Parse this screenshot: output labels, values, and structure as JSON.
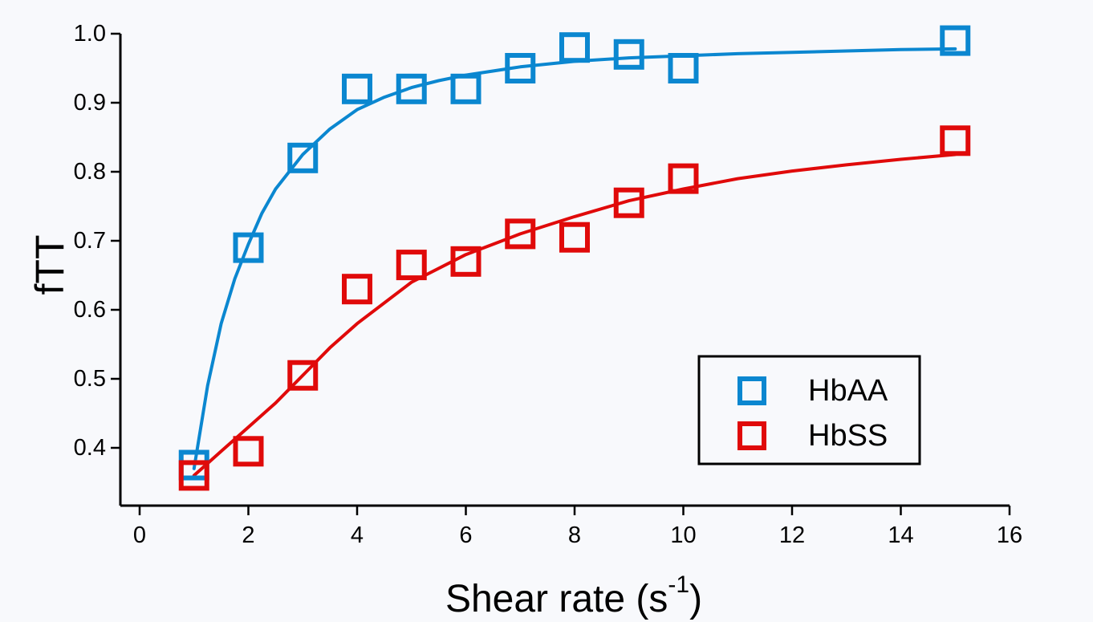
{
  "chart_data": {
    "type": "scatter",
    "title": "",
    "xlabel": "Shear rate (s",
    "xlabel_superscript": "-1",
    "xlabel_suffix": ")",
    "ylabel": "fTT",
    "xlim": [
      -0.5,
      16
    ],
    "ylim": [
      0.335,
      1.02
    ],
    "x_ticks": [
      0,
      2,
      4,
      6,
      8,
      10,
      12,
      14,
      16
    ],
    "y_ticks": [
      0.4,
      0.5,
      0.6,
      0.7,
      0.8,
      0.9,
      1.0
    ],
    "y_tick_labels": [
      "0.4",
      "0.5",
      "0.6",
      "0.7",
      "0.8",
      "0.9",
      "1.0"
    ],
    "grid": false,
    "legend_position": "bottom-right",
    "series": [
      {
        "name": "HbAA",
        "color": "#0b87d0",
        "marker": "open-square",
        "x": [
          1,
          2,
          3,
          4,
          5,
          6,
          7,
          8,
          9,
          10,
          15
        ],
        "y": [
          0.375,
          0.69,
          0.82,
          0.92,
          0.92,
          0.92,
          0.95,
          0.98,
          0.97,
          0.95,
          0.99
        ],
        "fit_x": [
          1.0,
          1.25,
          1.5,
          1.75,
          2.0,
          2.25,
          2.5,
          2.75,
          3.0,
          3.5,
          4.0,
          4.5,
          5.0,
          5.5,
          6.0,
          7.0,
          8.0,
          9.0,
          10.0,
          11.0,
          12.0,
          13.0,
          14.0,
          15.0
        ],
        "fit_y": [
          0.37,
          0.49,
          0.58,
          0.645,
          0.695,
          0.74,
          0.775,
          0.8,
          0.825,
          0.862,
          0.89,
          0.908,
          0.922,
          0.932,
          0.94,
          0.952,
          0.96,
          0.965,
          0.968,
          0.971,
          0.973,
          0.975,
          0.977,
          0.978
        ]
      },
      {
        "name": "HbSS",
        "color": "#e00a0a",
        "marker": "open-square",
        "x": [
          1,
          2,
          3,
          4,
          5,
          6,
          7,
          8,
          9,
          10,
          15
        ],
        "y": [
          0.36,
          0.395,
          0.505,
          0.63,
          0.665,
          0.67,
          0.71,
          0.705,
          0.755,
          0.79,
          0.845
        ],
        "fit_x": [
          1.0,
          1.5,
          2.0,
          2.5,
          3.0,
          3.5,
          4.0,
          5.0,
          6.0,
          7.0,
          8.0,
          9.0,
          10.0,
          11.0,
          12.0,
          13.0,
          14.0,
          15.0
        ],
        "fit_y": [
          0.36,
          0.395,
          0.43,
          0.465,
          0.505,
          0.545,
          0.58,
          0.64,
          0.68,
          0.71,
          0.735,
          0.758,
          0.775,
          0.79,
          0.801,
          0.81,
          0.818,
          0.825
        ]
      }
    ]
  }
}
